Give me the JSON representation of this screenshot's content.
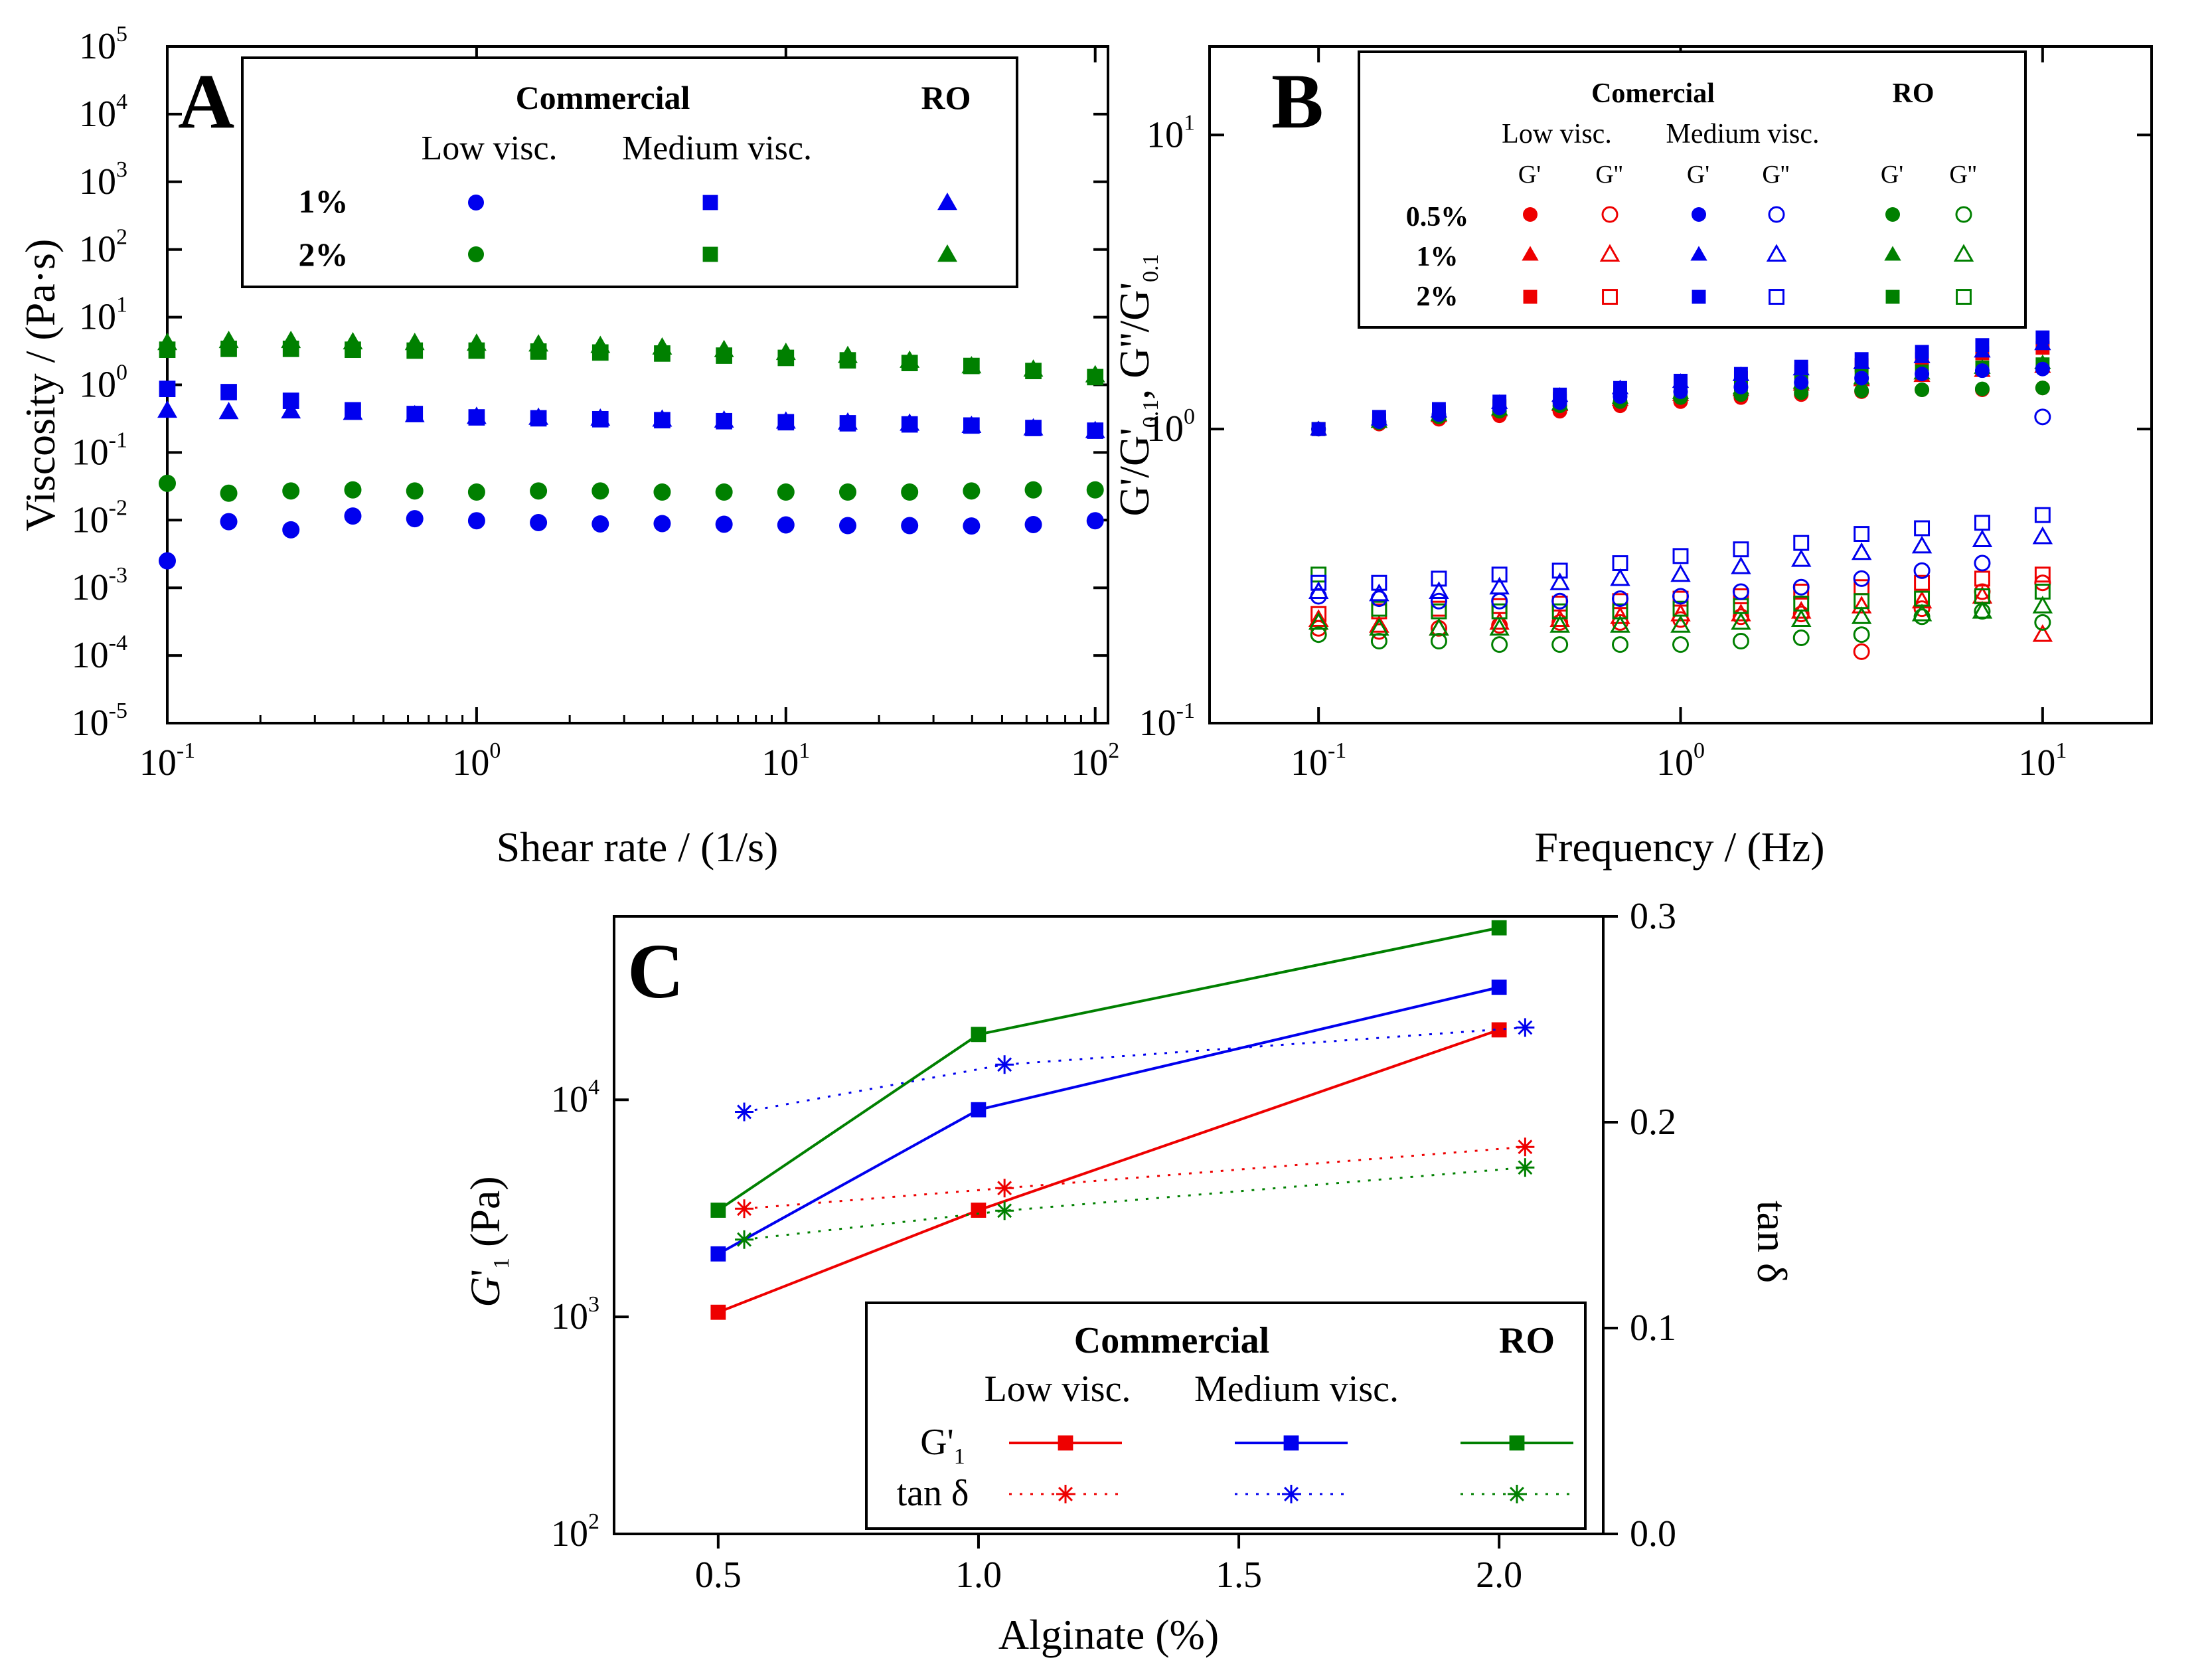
{
  "colors": {
    "low": "#ee0000",
    "medium": "#0000ee",
    "ro": "#008000",
    "axis": "#000000"
  },
  "chart_data": [
    {
      "panel": "A",
      "type": "scatter",
      "xlabel": "Shear rate / (1/s)",
      "ylabel": "Viscosity / (Pa·s)",
      "xscale": "log",
      "yscale": "log",
      "xlim": [
        0.1,
        100
      ],
      "ylim": [
        1e-05,
        100000
      ],
      "xticks": [
        {
          "base": "10",
          "exp": "-1"
        },
        {
          "base": "10",
          "exp": "0"
        },
        {
          "base": "10",
          "exp": "1"
        },
        {
          "base": "10",
          "exp": "2"
        }
      ],
      "yticks": [
        {
          "base": "10",
          "exp": "-5"
        },
        {
          "base": "10",
          "exp": "-4"
        },
        {
          "base": "10",
          "exp": "-3"
        },
        {
          "base": "10",
          "exp": "-2"
        },
        {
          "base": "10",
          "exp": "-1"
        },
        {
          "base": "10",
          "exp": "0"
        },
        {
          "base": "10",
          "exp": "1"
        },
        {
          "base": "10",
          "exp": "2"
        },
        {
          "base": "10",
          "exp": "3"
        },
        {
          "base": "10",
          "exp": "4"
        },
        {
          "base": "10",
          "exp": "5"
        }
      ],
      "legend": {
        "group": "Commercial",
        "ro": "RO",
        "columns": [
          "Low visc.",
          "Medium visc."
        ],
        "rows": [
          "1%",
          "2%"
        ]
      },
      "x": [
        0.1,
        0.158,
        0.251,
        0.398,
        0.631,
        1.0,
        1.585,
        2.512,
        3.981,
        6.31,
        10.0,
        15.85,
        25.12,
        39.81,
        63.1,
        100.0
      ],
      "series": [
        {
          "grade": "low",
          "conc": "1%",
          "marker": "circle",
          "color": "medium",
          "values": [
            0.0025,
            0.0095,
            0.0072,
            0.0115,
            0.0105,
            0.0098,
            0.0092,
            0.0088,
            0.0089,
            0.0087,
            0.0085,
            0.0083,
            0.0083,
            0.0082,
            0.0086,
            0.0098
          ]
        },
        {
          "grade": "medium",
          "conc": "1%",
          "marker": "square",
          "color": "medium",
          "values": [
            0.87,
            0.78,
            0.58,
            0.42,
            0.37,
            0.33,
            0.32,
            0.31,
            0.3,
            0.29,
            0.28,
            0.27,
            0.26,
            0.25,
            0.23,
            0.21
          ]
        },
        {
          "grade": "ro",
          "conc": "1%",
          "marker": "triangle",
          "color": "medium",
          "values": [
            0.42,
            0.4,
            0.41,
            0.39,
            0.36,
            0.34,
            0.33,
            0.32,
            0.31,
            0.3,
            0.29,
            0.28,
            0.27,
            0.25,
            0.23,
            0.21
          ]
        },
        {
          "grade": "low",
          "conc": "2%",
          "marker": "circle",
          "color": "ro",
          "values": [
            0.035,
            0.025,
            0.027,
            0.028,
            0.027,
            0.026,
            0.027,
            0.027,
            0.026,
            0.026,
            0.026,
            0.026,
            0.026,
            0.027,
            0.028,
            0.028
          ]
        },
        {
          "grade": "medium",
          "conc": "2%",
          "marker": "square",
          "color": "ro",
          "values": [
            3.3,
            3.4,
            3.4,
            3.3,
            3.2,
            3.2,
            3.1,
            3.0,
            2.9,
            2.7,
            2.5,
            2.3,
            2.1,
            1.9,
            1.6,
            1.3
          ]
        },
        {
          "grade": "ro",
          "conc": "2%",
          "marker": "triangle",
          "color": "ro",
          "values": [
            4.2,
            4.5,
            4.5,
            4.3,
            4.2,
            4.1,
            4.0,
            3.8,
            3.6,
            3.3,
            3.0,
            2.7,
            2.3,
            1.9,
            1.7,
            1.4
          ]
        }
      ]
    },
    {
      "panel": "B",
      "type": "scatter",
      "xlabel": "Frequency / (Hz)",
      "ylabel": "G'/G'0.1, G''/G'0.1",
      "xscale": "log",
      "yscale": "log",
      "xlim": [
        0.05,
        20
      ],
      "ylim": [
        0.1,
        20
      ],
      "xticks": [
        {
          "base": "10",
          "exp": "-1"
        },
        {
          "base": "10",
          "exp": "0"
        },
        {
          "base": "10",
          "exp": "1"
        }
      ],
      "yticks": [
        {
          "base": "10",
          "exp": "-1"
        },
        {
          "base": "10",
          "exp": "0"
        },
        {
          "base": "10",
          "exp": "1"
        }
      ],
      "legend": {
        "group": "Comercial",
        "ro": "RO",
        "columns": [
          "Low visc.",
          "Medium visc."
        ],
        "moduli": [
          "G'",
          "G''"
        ],
        "rows": [
          "0.5%",
          "1%",
          "2%"
        ]
      },
      "x": [
        0.1,
        0.147,
        0.215,
        0.316,
        0.464,
        0.681,
        1.0,
        1.468,
        2.154,
        3.162,
        4.642,
        6.813,
        10.0
      ],
      "storage": {
        "low": {
          "0.5%": [
            1.0,
            1.04,
            1.08,
            1.11,
            1.15,
            1.2,
            1.24,
            1.28,
            1.31,
            1.34,
            1.36,
            1.36,
            1.38
          ],
          "1%": [
            1.0,
            1.06,
            1.11,
            1.16,
            1.21,
            1.26,
            1.31,
            1.36,
            1.42,
            1.47,
            1.52,
            1.58,
            1.63
          ],
          "2%": [
            1.0,
            1.07,
            1.14,
            1.2,
            1.27,
            1.34,
            1.42,
            1.49,
            1.57,
            1.65,
            1.73,
            1.81,
            1.89
          ]
        },
        "medium": {
          "0.5%": [
            1.0,
            1.06,
            1.12,
            1.18,
            1.23,
            1.29,
            1.34,
            1.39,
            1.44,
            1.49,
            1.54,
            1.58,
            1.6
          ],
          "1%": [
            1.0,
            1.08,
            1.15,
            1.23,
            1.3,
            1.38,
            1.45,
            1.53,
            1.6,
            1.68,
            1.76,
            1.84,
            1.95
          ],
          "2%": [
            1.0,
            1.1,
            1.17,
            1.24,
            1.31,
            1.38,
            1.46,
            1.54,
            1.63,
            1.73,
            1.83,
            1.93,
            2.05
          ]
        },
        "ro": {
          "0.5%": [
            1.0,
            1.05,
            1.1,
            1.15,
            1.2,
            1.24,
            1.28,
            1.31,
            1.33,
            1.35,
            1.36,
            1.37,
            1.38
          ],
          "1%": [
            1.0,
            1.06,
            1.12,
            1.17,
            1.22,
            1.28,
            1.33,
            1.38,
            1.44,
            1.49,
            1.55,
            1.62,
            1.68
          ],
          "2%": [
            1.0,
            1.07,
            1.13,
            1.19,
            1.25,
            1.31,
            1.37,
            1.42,
            1.47,
            1.52,
            1.57,
            1.62,
            1.66
          ]
        }
      },
      "loss": {
        "low": {
          "0.5%": [
            0.21,
            0.205,
            0.21,
            0.215,
            0.22,
            0.22,
            0.225,
            0.23,
            0.235,
            0.175,
            0.245,
            0.28,
            0.3
          ],
          "1%": [
            0.225,
            0.215,
            0.21,
            0.22,
            0.225,
            0.23,
            0.235,
            0.235,
            0.24,
            0.25,
            0.26,
            0.27,
            0.2
          ],
          "2%": [
            0.235,
            0.24,
            0.245,
            0.25,
            0.255,
            0.26,
            0.265,
            0.27,
            0.28,
            0.29,
            0.3,
            0.31,
            0.32
          ]
        },
        "medium": {
          "0.5%": [
            0.27,
            0.265,
            0.26,
            0.26,
            0.26,
            0.265,
            0.27,
            0.28,
            0.29,
            0.31,
            0.33,
            0.35,
            1.1
          ],
          "1%": [
            0.28,
            0.275,
            0.28,
            0.29,
            0.3,
            0.31,
            0.32,
            0.34,
            0.36,
            0.38,
            0.4,
            0.42,
            0.43
          ],
          "2%": [
            0.3,
            0.3,
            0.31,
            0.32,
            0.33,
            0.35,
            0.37,
            0.39,
            0.41,
            0.44,
            0.46,
            0.48,
            0.51
          ]
        },
        "ro": {
          "0.5%": [
            0.2,
            0.19,
            0.19,
            0.185,
            0.185,
            0.185,
            0.185,
            0.19,
            0.195,
            0.2,
            0.23,
            0.24,
            0.22
          ],
          "1%": [
            0.22,
            0.21,
            0.21,
            0.21,
            0.215,
            0.215,
            0.215,
            0.22,
            0.225,
            0.23,
            0.235,
            0.24,
            0.25
          ],
          "2%": [
            0.32,
            0.245,
            0.24,
            0.24,
            0.24,
            0.24,
            0.245,
            0.25,
            0.255,
            0.26,
            0.265,
            0.27,
            0.28
          ]
        }
      }
    },
    {
      "panel": "C",
      "type": "line",
      "xlabel": "Alginate (%)",
      "ylabel": "G'1 (Pa)",
      "y2label": "tan δ",
      "yscale": "log",
      "xlim": [
        0.3,
        2.2
      ],
      "ylim": [
        100,
        70000
      ],
      "y2lim": [
        0.0,
        0.3
      ],
      "xticks": [
        "0.5",
        "1.0",
        "1.5",
        "2.0"
      ],
      "yticks": [
        {
          "base": "10",
          "exp": "2"
        },
        {
          "base": "10",
          "exp": "3"
        },
        {
          "base": "10",
          "exp": "4"
        }
      ],
      "y2ticks": [
        "0.0",
        "0.1",
        "0.2",
        "0.3"
      ],
      "legend": {
        "group": "Commercial",
        "ro": "RO",
        "columns": [
          "Low visc.",
          "Medium visc."
        ],
        "row_g": "G'1",
        "row_tan": "tan δ"
      },
      "x": [
        0.5,
        1.0,
        2.0
      ],
      "x_tan": [
        0.55,
        1.05,
        2.05
      ],
      "G1": {
        "low": [
          1050,
          3100,
          21000
        ],
        "medium": [
          1950,
          9000,
          33000
        ],
        "ro": [
          3100,
          20000,
          62000
        ]
      },
      "tan_delta": {
        "low": [
          0.158,
          0.168,
          0.188
        ],
        "medium": [
          0.205,
          0.228,
          0.246
        ],
        "ro": [
          0.143,
          0.157,
          0.178
        ]
      }
    }
  ]
}
